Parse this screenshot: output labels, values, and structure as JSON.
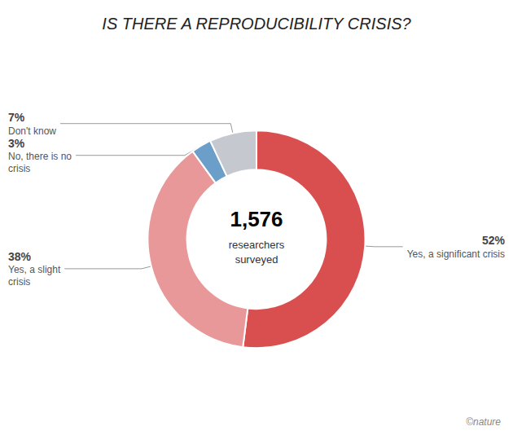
{
  "chart_data": {
    "type": "pie",
    "title": "IS THERE A REPRODUCIBILITY CRISIS?",
    "categories": [
      "Yes, a significant crisis",
      "Yes, a slight\ncrisis",
      "No, there is no\ncrisis",
      "Don't know"
    ],
    "values": [
      52,
      38,
      3,
      7
    ],
    "value_labels": [
      "52%",
      "38%",
      "3%",
      "7%"
    ],
    "data_labels": true,
    "colors": [
      "#d94f4f",
      "#e89898",
      "#6b9ec8",
      "#c5c9cf"
    ],
    "annotations": [
      "1,576",
      "researchers",
      "surveyed",
      "©nature"
    ],
    "legend": false
  }
}
